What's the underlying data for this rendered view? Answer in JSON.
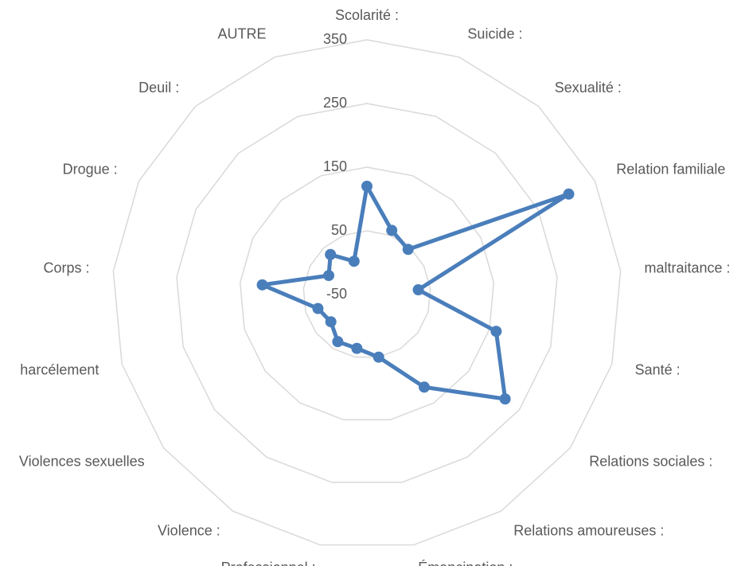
{
  "chart_data": {
    "type": "radar",
    "categories": [
      "Scolarité  :",
      "Suicide  :",
      "Sexualité  :",
      "Relation familiale",
      "maltraitance  :",
      "Santé  :",
      "Relations sociales  :",
      "Relations amoureuses  :",
      "Émancipation  :",
      "Professionnel  :",
      "Violence  :",
      "Violences sexuelles",
      "harcélement",
      "Corps :",
      "Drogue :",
      "Deuil :",
      "AUTRE"
    ],
    "series": [
      {
        "color": "#4a7ebb",
        "values": [
          120,
          58,
          46,
          304,
          31,
          161,
          222,
          121,
          50,
          36,
          37,
          21,
          30,
          115,
          17,
          35,
          6
        ]
      }
    ],
    "ylim": [
      -50,
      350
    ],
    "yticks": [
      -50,
      50,
      150,
      250,
      350
    ],
    "grid": true
  }
}
